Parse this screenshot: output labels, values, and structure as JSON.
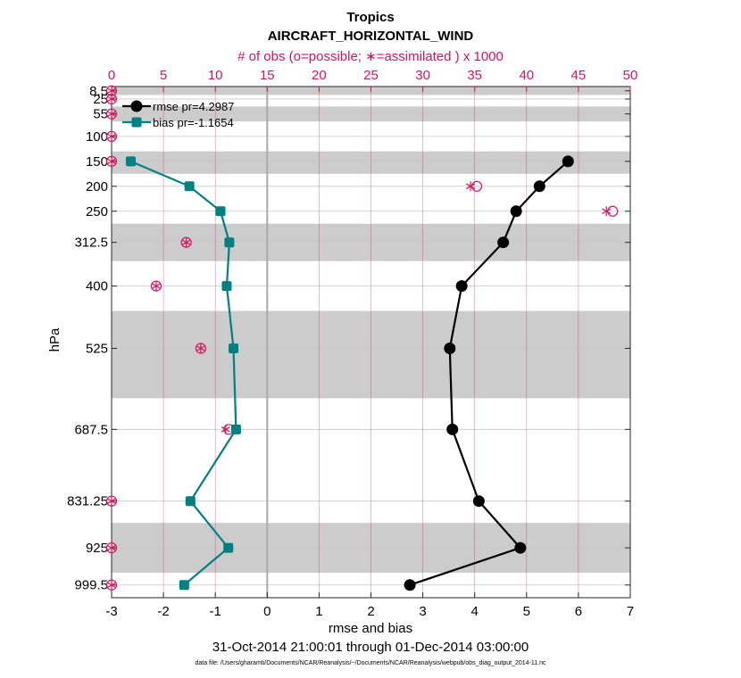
{
  "chart_data": {
    "type": "line",
    "title": "Tropics",
    "subtitle": "AIRCRAFT_HORIZONTAL_WIND",
    "top_axis_label": "# of obs (o=possible; ∗=assimilated ) x 1000",
    "xlabel": "rmse and bias",
    "ylabel": "hPa",
    "date_range": "31-Oct-2014 21:00:01 through 01-Dec-2014 03:00:00",
    "footer": "data file: /Users/gharamti/Documents/NCAR/Reanalysis/~/Documents/NCAR/Reanalysis/webpub/obs_diag_output_2014-11.nc",
    "xlim": [
      -3,
      7
    ],
    "x_ticks": [
      -3,
      -2,
      -1,
      0,
      1,
      2,
      3,
      4,
      5,
      6,
      7
    ],
    "top_xlim": [
      0,
      50
    ],
    "top_ticks": [
      0,
      5,
      10,
      15,
      20,
      25,
      30,
      35,
      40,
      45,
      50
    ],
    "ylim": [
      1025,
      0
    ],
    "levels": [
      8.5,
      25,
      55,
      100,
      150,
      200,
      250,
      312.5,
      400,
      525,
      687.5,
      831.25,
      925,
      999.5
    ],
    "level_labels": [
      "8.5",
      "25",
      "55",
      "100",
      "150",
      "200",
      "250",
      "312.5",
      "400",
      "525",
      "687.5",
      "831.25",
      "925",
      "999.5"
    ],
    "shaded_bands": [
      [
        0,
        17
      ],
      [
        40,
        70
      ],
      [
        130,
        175
      ],
      [
        275,
        350
      ],
      [
        450,
        625
      ],
      [
        875,
        975
      ]
    ],
    "series": [
      {
        "name": "rmse",
        "legend": "rmse pr=4.2987",
        "color": "#000000",
        "marker": "circle",
        "levels": [
          150,
          200,
          250,
          312.5,
          400,
          525,
          687.5,
          831.25,
          925,
          999.5
        ],
        "values": [
          5.8,
          5.25,
          4.8,
          4.55,
          3.75,
          3.52,
          3.57,
          4.08,
          4.88,
          2.75
        ]
      },
      {
        "name": "bias",
        "legend": "bias pr=-1.1654",
        "color": "#008080",
        "marker": "square",
        "levels": [
          150,
          200,
          250,
          312.5,
          400,
          525,
          687.5,
          831.25,
          925,
          999.5
        ],
        "values": [
          -2.63,
          -1.5,
          -0.9,
          -0.73,
          -0.78,
          -0.65,
          -0.6,
          -1.48,
          -0.75,
          -1.6
        ]
      }
    ],
    "obs_counts": {
      "color": "#d6135c",
      "levels": [
        8.5,
        25,
        55,
        100,
        150,
        200,
        250,
        312.5,
        400,
        525,
        687.5,
        831.25,
        925,
        999.5
      ],
      "possible": [
        0,
        0,
        0,
        0,
        0,
        35.2,
        48.3,
        7.2,
        4.3,
        8.6,
        11.3,
        0,
        0,
        0
      ],
      "assimilated": [
        0,
        0,
        0,
        0,
        0,
        34.6,
        47.7,
        7.2,
        4.3,
        8.6,
        11.0,
        0,
        0,
        0
      ]
    }
  }
}
